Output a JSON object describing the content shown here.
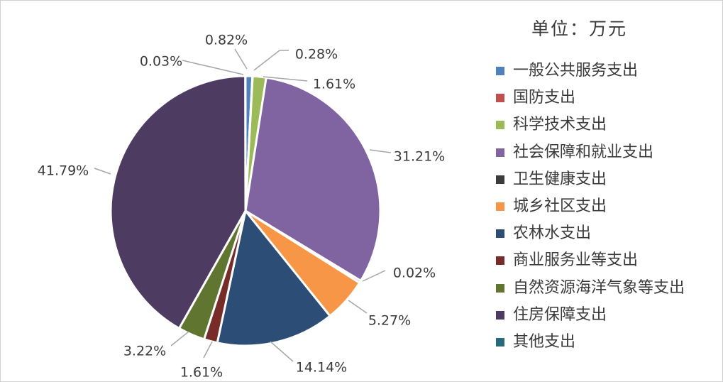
{
  "chart_data": {
    "type": "pie",
    "unit_label": "单位：万元",
    "legend_placement": "right",
    "slices": [
      {
        "name": "一般公共服务支出",
        "value": 0.82,
        "label": "0.82%",
        "color": "#4f81bd"
      },
      {
        "name": "国防支出",
        "value": 0.03,
        "label": "0.03%",
        "color": "#c0504d"
      },
      {
        "name": "科学技术支出",
        "value": 1.61,
        "label": "1.61%",
        "color": "#9bbb59"
      },
      {
        "name": "社会保障和就业支出",
        "value": 31.21,
        "label": "31.21%",
        "color": "#8064a2"
      },
      {
        "name": "卫生健康支出",
        "value": 0.28,
        "label": "0.28%",
        "color": "#3c3c3c"
      },
      {
        "name": "城乡社区支出",
        "value": 5.27,
        "label": "5.27%",
        "color": "#f79646"
      },
      {
        "name": "农林水支出",
        "value": 14.14,
        "label": "14.14%",
        "color": "#2c4d75"
      },
      {
        "name": "商业服务业等支出",
        "value": 1.61,
        "label": "1.61%",
        "color": "#772c2a"
      },
      {
        "name": "自然资源海洋气象等支出",
        "value": 3.22,
        "label": "3.22%",
        "color": "#5f7530"
      },
      {
        "name": "住房保障支出",
        "value": 41.79,
        "label": "41.79%",
        "color": "#4d3b62"
      },
      {
        "name": "其他支出",
        "value": 0.02,
        "label": "0.02%",
        "color": "#276a7c"
      }
    ]
  }
}
